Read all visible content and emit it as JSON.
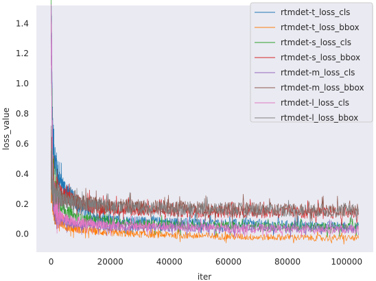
{
  "chart_data": {
    "type": "line",
    "xlabel": "iter",
    "ylabel": "loss_value",
    "xlim": [
      -5000,
      109000
    ],
    "ylim": [
      -0.12,
      1.52
    ],
    "xticks": [
      0,
      20000,
      40000,
      60000,
      80000,
      100000
    ],
    "xtick_labels": [
      "0",
      "20000",
      "40000",
      "60000",
      "80000",
      "100000"
    ],
    "yticks": [
      0.0,
      0.2,
      0.4,
      0.6,
      0.8,
      1.0,
      1.2,
      1.4
    ],
    "ytick_labels": [
      "0.0",
      "0.2",
      "0.4",
      "0.6",
      "0.8",
      "1.0",
      "1.2",
      "1.4"
    ],
    "grid": false,
    "legend_position": "top-right",
    "background": "#eaeaf2",
    "series": [
      {
        "name": "rtmdet-t_loss_cls",
        "color": "#1f77b4",
        "x": [
          0,
          500,
          1000,
          2000,
          3000,
          5000,
          7000,
          10000,
          15000,
          20000,
          30000,
          40000,
          50000,
          60000,
          70000,
          80000,
          90000,
          100000,
          104000
        ],
        "y": [
          1.45,
          0.7,
          0.55,
          0.42,
          0.35,
          0.3,
          0.25,
          0.17,
          0.1,
          0.09,
          0.085,
          0.08,
          0.07,
          0.07,
          0.065,
          0.06,
          0.055,
          0.05,
          0.05
        ]
      },
      {
        "name": "rtmdet-t_loss_bbox",
        "color": "#ff7f0e",
        "x": [
          0,
          1000,
          3000,
          5000,
          10000,
          20000,
          30000,
          40000,
          50000,
          60000,
          70000,
          80000,
          90000,
          100000,
          104000
        ],
        "y": [
          0.3,
          0.15,
          0.08,
          0.05,
          0.03,
          0.01,
          0.0,
          -0.005,
          -0.01,
          -0.015,
          -0.02,
          -0.02,
          -0.025,
          -0.025,
          -0.025
        ]
      },
      {
        "name": "rtmdet-s_loss_cls",
        "color": "#2ca02c",
        "x": [
          0,
          500,
          1000,
          3000,
          5000,
          10000,
          20000,
          30000,
          40000,
          60000,
          80000,
          100000,
          104000
        ],
        "y": [
          1.4,
          0.5,
          0.3,
          0.2,
          0.15,
          0.1,
          0.08,
          0.07,
          0.06,
          0.055,
          0.05,
          0.045,
          0.045
        ]
      },
      {
        "name": "rtmdet-s_loss_bbox",
        "color": "#d62728",
        "x": [
          0,
          500,
          1000,
          3000,
          5000,
          10000,
          20000,
          30000,
          40000,
          60000,
          80000,
          100000,
          104000
        ],
        "y": [
          0.45,
          0.35,
          0.3,
          0.27,
          0.25,
          0.2,
          0.17,
          0.16,
          0.155,
          0.15,
          0.145,
          0.14,
          0.14
        ]
      },
      {
        "name": "rtmdet-m_loss_cls",
        "color": "#9467bd",
        "x": [
          0,
          500,
          1000,
          3000,
          5000,
          10000,
          20000,
          40000,
          60000,
          80000,
          100000,
          104000
        ],
        "y": [
          1.4,
          0.25,
          0.15,
          0.1,
          0.08,
          0.06,
          0.05,
          0.045,
          0.04,
          0.04,
          0.035,
          0.035
        ]
      },
      {
        "name": "rtmdet-m_loss_bbox",
        "color": "#8c564b",
        "x": [
          0,
          500,
          1000,
          3000,
          5000,
          10000,
          20000,
          40000,
          60000,
          80000,
          100000,
          104000
        ],
        "y": [
          0.4,
          0.3,
          0.27,
          0.24,
          0.23,
          0.21,
          0.19,
          0.18,
          0.17,
          0.165,
          0.16,
          0.16
        ]
      },
      {
        "name": "rtmdet-l_loss_cls",
        "color": "#e377c2",
        "x": [
          0,
          500,
          1000,
          3000,
          5000,
          10000,
          20000,
          40000,
          60000,
          80000,
          100000,
          104000
        ],
        "y": [
          1.48,
          0.4,
          0.2,
          0.12,
          0.1,
          0.08,
          0.06,
          0.05,
          0.04,
          0.035,
          0.03,
          0.03
        ]
      },
      {
        "name": "rtmdet-l_loss_bbox",
        "color": "#7f7f7f",
        "x": [
          0,
          500,
          1000,
          3000,
          5000,
          10000,
          20000,
          40000,
          60000,
          80000,
          100000,
          104000
        ],
        "y": [
          0.5,
          0.3,
          0.26,
          0.24,
          0.22,
          0.2,
          0.18,
          0.17,
          0.165,
          0.16,
          0.155,
          0.155
        ]
      }
    ]
  }
}
